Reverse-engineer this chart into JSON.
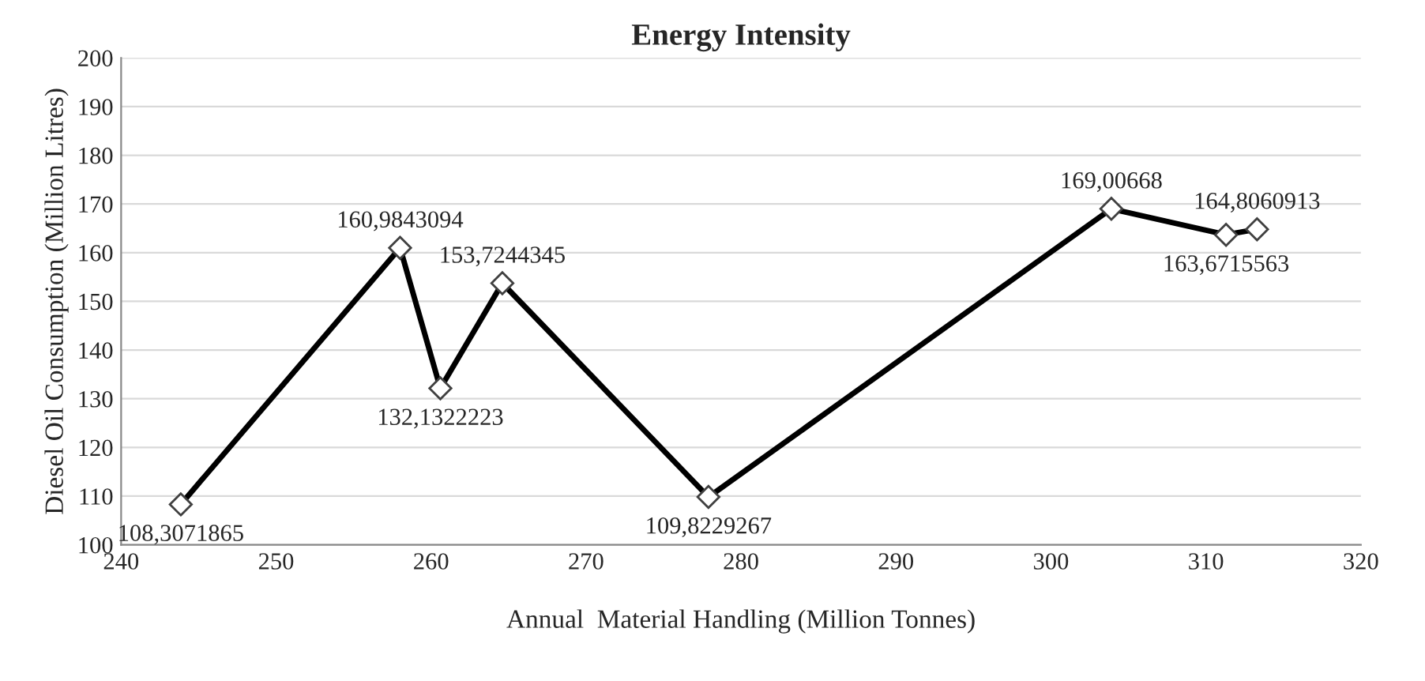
{
  "chart_data": {
    "type": "line",
    "title": "Energy Intensity",
    "xlabel": "Annual  Material Handling (Million Tonnes)",
    "ylabel": "Diesel Oil Consumption (Million Litres)",
    "x": [
      243.85,
      258.0,
      260.6,
      264.6,
      277.9,
      303.9,
      311.3,
      313.3
    ],
    "series": [
      {
        "color": "#000000",
        "values": [
          108.3071865,
          160.9843094,
          132.1322223,
          153.7244345,
          109.8229267,
          169.00668,
          163.6715563,
          164.8060913
        ],
        "value_labels": [
          "108,3071865",
          "160,9843094",
          "132,1322223",
          "153,7244345",
          "109,8229267",
          "169,00668",
          "163,6715563",
          "164,8060913"
        ]
      }
    ],
    "xlim": [
      240,
      320
    ],
    "xticks": [
      240,
      250,
      260,
      270,
      280,
      290,
      300,
      310,
      320
    ],
    "ylim": [
      100,
      200
    ],
    "yticks": [
      100,
      110,
      120,
      130,
      140,
      150,
      160,
      170,
      180,
      190,
      200
    ],
    "grid": "y",
    "marker": "diamond",
    "line_style": "solid",
    "legend": false
  }
}
